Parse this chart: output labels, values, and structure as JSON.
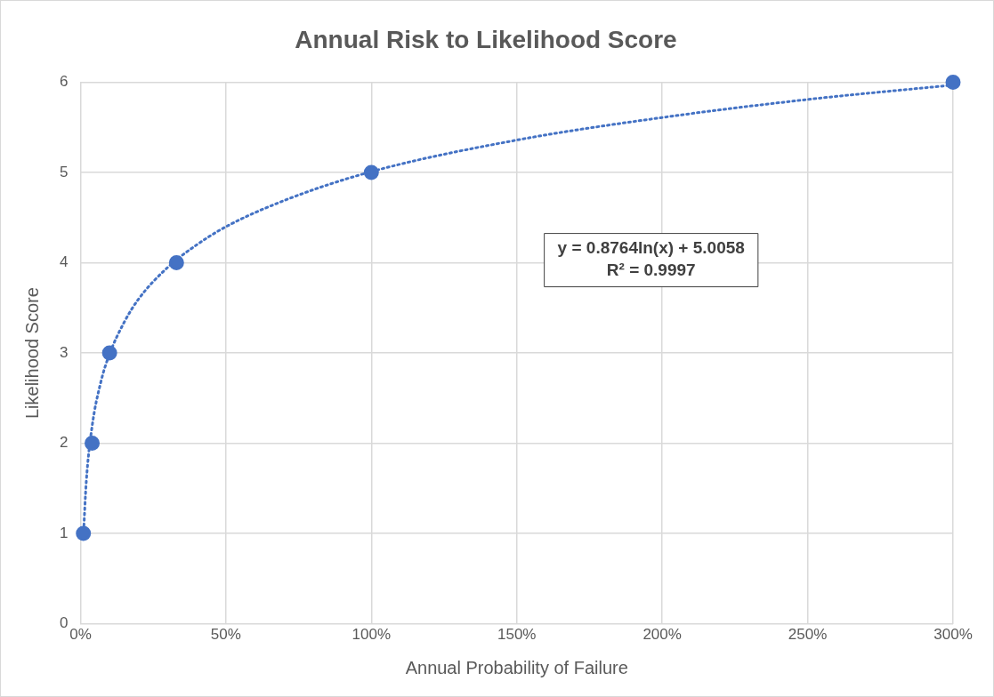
{
  "chart_data": {
    "type": "scatter",
    "title": "Annual Risk to Likelihood Score",
    "xlabel": "Annual Probability of Failure",
    "ylabel": "Likelihood Score",
    "series": [
      {
        "type": "scatter",
        "color": "#4472c4",
        "marker": "circle",
        "x": [
          1,
          4,
          10,
          33,
          100,
          300
        ],
        "values": [
          1,
          2,
          3,
          4,
          5,
          6
        ]
      },
      {
        "type": "line",
        "color": "#4472c4",
        "marker": "none",
        "line_style": "dotted",
        "x": [
          1,
          2,
          4,
          7,
          10,
          15,
          20,
          30,
          40,
          50,
          70,
          100,
          150,
          200,
          250,
          300
        ],
        "values": [
          0.97,
          1.58,
          2.19,
          2.68,
          2.99,
          3.34,
          3.6,
          3.95,
          4.2,
          4.4,
          4.69,
          5.01,
          5.36,
          5.61,
          5.81,
          5.97
        ]
      }
    ],
    "xlim": [
      0,
      300
    ],
    "xticks": [
      {
        "value": 0,
        "label": "0%"
      },
      {
        "value": 50,
        "label": "50%"
      },
      {
        "value": 100,
        "label": "100%"
      },
      {
        "value": 150,
        "label": "150%"
      },
      {
        "value": 200,
        "label": "200%"
      },
      {
        "value": 250,
        "label": "250%"
      },
      {
        "value": 300,
        "label": "300%"
      }
    ],
    "ylim": [
      0,
      6
    ],
    "yticks": [
      0,
      1,
      2,
      3,
      4,
      5,
      6
    ],
    "grid": true,
    "legend": false,
    "annotations": [
      "y = 0.8764ln(x) + 5.0058",
      "R² = 0.9997"
    ]
  }
}
